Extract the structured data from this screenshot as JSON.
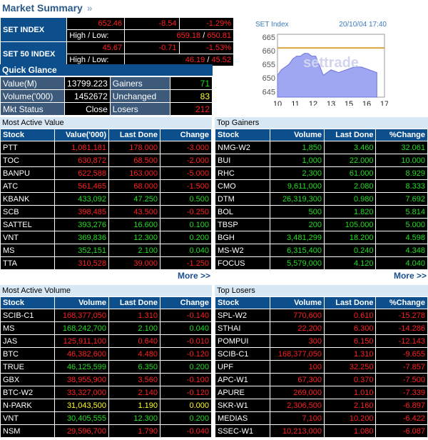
{
  "header": {
    "title": "Market Summary",
    "chevron": "»"
  },
  "indices": {
    "set": {
      "name": "SET INDEX",
      "value": "652.46",
      "change": "-8.54",
      "pct": "-1.29%",
      "hl_label": "High / Low:",
      "high": "659.18",
      "low": "650.81"
    },
    "set50": {
      "name": "SET 50 INDEX",
      "value": "45.67",
      "change": "-0.71",
      "pct": "-1.53%",
      "hl_label": "High / Low:",
      "high": "46.19",
      "low": "45.52"
    }
  },
  "quick_glance": {
    "title": "Quick Glance",
    "rows": [
      {
        "l1": "Value(M)",
        "v1": "13799.223",
        "l2": "Gainers",
        "v2": "71",
        "c2": "grn"
      },
      {
        "l1": "Volume('000)",
        "v1": "1452672",
        "l2": "Unchanged",
        "v2": "83",
        "c2": "yel"
      },
      {
        "l1": "Mkt Status",
        "v1": "Close",
        "l2": "Losers",
        "v2": "212",
        "c2": "red"
      }
    ]
  },
  "chart_data": {
    "type": "area",
    "title": "SET Index",
    "timestamp": "20/10/04 17:40",
    "watermark": "settrade",
    "x_labels": [
      "10",
      "11",
      "12",
      "13",
      "15",
      "16",
      "17"
    ],
    "y_labels": [
      "665",
      "660",
      "655",
      "650",
      "645"
    ],
    "ylim": [
      643,
      666
    ],
    "reference_line": 661,
    "x": [
      10,
      10.25,
      10.5,
      10.75,
      11,
      11.25,
      11.5,
      11.75,
      12,
      12.25,
      12.5,
      13,
      13.5,
      14,
      14.5,
      15,
      15.5,
      16,
      16.5
    ],
    "values": [
      651,
      653,
      654,
      655,
      657,
      658,
      658,
      659,
      659,
      658,
      658,
      651,
      653,
      652,
      653,
      654,
      654,
      653,
      652
    ]
  },
  "panels": {
    "most_active_value": {
      "title": "Most Active Value",
      "headers": [
        "Stock",
        "Value('000)",
        "Last Done",
        "Change"
      ],
      "more": "More >>",
      "rows": [
        {
          "stock": "PTT",
          "a": "1,081,181",
          "b": "178.000",
          "c": "-3.000",
          "col": "red"
        },
        {
          "stock": "TOC",
          "a": "630,872",
          "b": "68.500",
          "c": "-2.000",
          "col": "red"
        },
        {
          "stock": "BANPU",
          "a": "622,588",
          "b": "163.000",
          "c": "-5.000",
          "col": "red"
        },
        {
          "stock": "ATC",
          "a": "561,465",
          "b": "68.000",
          "c": "-1.500",
          "col": "red"
        },
        {
          "stock": "KBANK",
          "a": "433,092",
          "b": "47.250",
          "c": "0.500",
          "col": "grn"
        },
        {
          "stock": "SCB",
          "a": "398,485",
          "b": "43.500",
          "c": "-0.250",
          "col": "red"
        },
        {
          "stock": "SATTEL",
          "a": "393,276",
          "b": "16.600",
          "c": "0.100",
          "col": "grn"
        },
        {
          "stock": "VNT",
          "a": "369,836",
          "b": "12.300",
          "c": "0.200",
          "col": "grn"
        },
        {
          "stock": "MS",
          "a": "352,151",
          "b": "2.100",
          "c": "0.040",
          "col": "grn"
        },
        {
          "stock": "TTA",
          "a": "310,528",
          "b": "39.000",
          "c": "-1.250",
          "col": "red"
        }
      ]
    },
    "top_gainers": {
      "title": "Top Gainers",
      "headers": [
        "Stock",
        "Volume",
        "Last Done",
        "%Change"
      ],
      "more": "More >>",
      "rows": [
        {
          "stock": "NMG-W2",
          "a": "1,850",
          "b": "3.460",
          "c": "32.061",
          "col": "grn"
        },
        {
          "stock": "BUI",
          "a": "1,000",
          "b": "22.000",
          "c": "10.000",
          "col": "grn"
        },
        {
          "stock": "RHC",
          "a": "2,300",
          "b": "61.000",
          "c": "8.929",
          "col": "grn"
        },
        {
          "stock": "CMO",
          "a": "9,611,000",
          "b": "2.080",
          "c": "8.333",
          "col": "grn"
        },
        {
          "stock": "DTM",
          "a": "26,319,300",
          "b": "0.980",
          "c": "7.692",
          "col": "grn"
        },
        {
          "stock": "BOL",
          "a": "500",
          "b": "1.820",
          "c": "5.814",
          "col": "grn"
        },
        {
          "stock": "TBSP",
          "a": "200",
          "b": "105.000",
          "c": "5.000",
          "col": "grn"
        },
        {
          "stock": "BGH",
          "a": "3,481,299",
          "b": "18.200",
          "c": "4.598",
          "col": "grn"
        },
        {
          "stock": "MS-W2",
          "a": "6,315,400",
          "b": "0.240",
          "c": "4.348",
          "col": "grn"
        },
        {
          "stock": "FOCUS",
          "a": "5,579,000",
          "b": "4.120",
          "c": "4.040",
          "col": "grn"
        }
      ]
    },
    "most_active_volume": {
      "title": "Most Active Volume",
      "headers": [
        "Stock",
        "Volume",
        "Last Done",
        "Change"
      ],
      "rows": [
        {
          "stock": "SCIB-C1",
          "a": "168,377,050",
          "b": "1.310",
          "c": "-0.140",
          "col": "red"
        },
        {
          "stock": "MS",
          "a": "168,242,700",
          "b": "2.100",
          "c": "0.040",
          "col": "grn"
        },
        {
          "stock": "JAS",
          "a": "125,911,100",
          "b": "0.640",
          "c": "-0.010",
          "col": "red"
        },
        {
          "stock": "BTC",
          "a": "46,382,600",
          "b": "4.480",
          "c": "-0.120",
          "col": "red"
        },
        {
          "stock": "TRUE",
          "a": "46,125,599",
          "b": "6.350",
          "c": "0.200",
          "col": "grn"
        },
        {
          "stock": "GBX",
          "a": "38,955,900",
          "b": "3.560",
          "c": "-0.100",
          "col": "red"
        },
        {
          "stock": "BTC-W2",
          "a": "33,327,000",
          "b": "2.140",
          "c": "-0.120",
          "col": "red"
        },
        {
          "stock": "N-PARK",
          "a": "31,043,500",
          "b": "1.190",
          "c": "0.000",
          "col": "yel"
        },
        {
          "stock": "VNT",
          "a": "30,405,555",
          "b": "12.300",
          "c": "0.200",
          "col": "grn"
        },
        {
          "stock": "NSM",
          "a": "29,596,700",
          "b": "1.790",
          "c": "-0.040",
          "col": "red"
        }
      ]
    },
    "top_losers": {
      "title": "Top Losers",
      "headers": [
        "Stock",
        "Volume",
        "Last Done",
        "%Change"
      ],
      "rows": [
        {
          "stock": "SPL-W2",
          "a": "770,600",
          "b": "0.610",
          "c": "-15.278",
          "col": "red"
        },
        {
          "stock": "STHAI",
          "a": "22,200",
          "b": "6.300",
          "c": "-14.286",
          "col": "red"
        },
        {
          "stock": "POMPUI",
          "a": "300",
          "b": "6.150",
          "c": "-12.143",
          "col": "red"
        },
        {
          "stock": "SCIB-C1",
          "a": "168,377,050",
          "b": "1.310",
          "c": "-9.655",
          "col": "red"
        },
        {
          "stock": "UPF",
          "a": "100",
          "b": "32.250",
          "c": "-7.857",
          "col": "red"
        },
        {
          "stock": "APC-W1",
          "a": "67,300",
          "b": "0.370",
          "c": "-7.500",
          "col": "red"
        },
        {
          "stock": "APURE",
          "a": "269,000",
          "b": "1.010",
          "c": "-7.339",
          "col": "red"
        },
        {
          "stock": "SKR-W1",
          "a": "2,306,500",
          "b": "2.160",
          "c": "-6.897",
          "col": "red"
        },
        {
          "stock": "MEDIAS",
          "a": "7,100",
          "b": "10.200",
          "c": "-6.422",
          "col": "red"
        },
        {
          "stock": "SSEC-W1",
          "a": "10,213,000",
          "b": "1.080",
          "c": "-6.087",
          "col": "red"
        }
      ]
    }
  }
}
